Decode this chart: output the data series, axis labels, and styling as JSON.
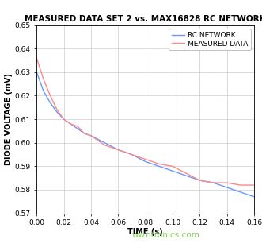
{
  "title": "MEASURED DATA SET 2 vs. MAX16828 RC NETWORK",
  "xlabel": "TIME (s)",
  "ylabel": "DIODE VOLTAGE (mV)",
  "xlim": [
    0.0,
    0.16
  ],
  "ylim": [
    0.57,
    0.65
  ],
  "xticks": [
    0.0,
    0.02,
    0.04,
    0.06,
    0.08,
    0.1,
    0.12,
    0.14,
    0.16
  ],
  "yticks": [
    0.57,
    0.58,
    0.59,
    0.6,
    0.61,
    0.62,
    0.63,
    0.64,
    0.65
  ],
  "rc_network_color": "#6699ff",
  "measured_data_color": "#ff8888",
  "background_color": "#ffffff",
  "grid_color": "#cccccc",
  "legend_labels": [
    "RC NETWORK",
    "MEASURED DATA"
  ],
  "watermark": "wwTIME (s)ntronics.com",
  "watermark_color": "#77cc44",
  "rc_x": [
    0.0,
    0.005,
    0.01,
    0.015,
    0.02,
    0.025,
    0.03,
    0.035,
    0.04,
    0.05,
    0.06,
    0.07,
    0.08,
    0.09,
    0.1,
    0.11,
    0.12,
    0.13,
    0.14,
    0.15,
    0.16
  ],
  "rc_y": [
    0.63,
    0.622,
    0.617,
    0.613,
    0.61,
    0.608,
    0.606,
    0.604,
    0.603,
    0.6,
    0.597,
    0.595,
    0.592,
    0.59,
    0.588,
    0.586,
    0.584,
    0.583,
    0.581,
    0.579,
    0.577
  ],
  "meas_x": [
    0.0,
    0.005,
    0.01,
    0.015,
    0.02,
    0.025,
    0.03,
    0.035,
    0.04,
    0.05,
    0.06,
    0.07,
    0.08,
    0.09,
    0.1,
    0.11,
    0.12,
    0.13,
    0.14,
    0.15,
    0.16
  ],
  "meas_y": [
    0.636,
    0.627,
    0.62,
    0.614,
    0.61,
    0.608,
    0.607,
    0.604,
    0.603,
    0.599,
    0.597,
    0.595,
    0.593,
    0.591,
    0.59,
    0.587,
    0.584,
    0.583,
    0.583,
    0.582,
    0.582
  ],
  "title_fontsize": 7.5,
  "axis_label_fontsize": 7,
  "tick_fontsize": 6.5,
  "legend_fontsize": 6.5
}
